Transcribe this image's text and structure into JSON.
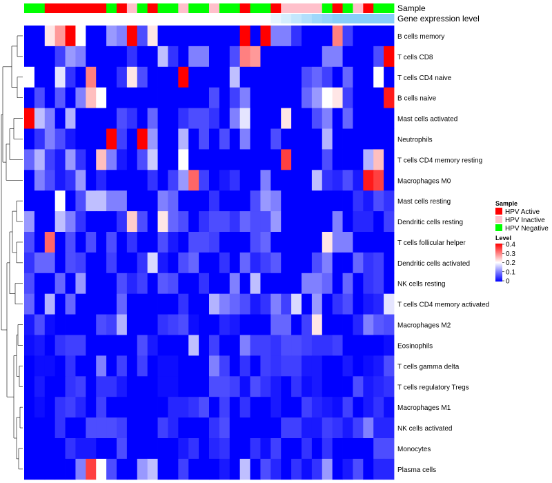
{
  "chart_data": {
    "type": "heatmap",
    "title": "",
    "annotation_labels": [
      "Sample",
      "Gene expression level"
    ],
    "rows": [
      "B cells memory",
      "T cells CD8",
      "T cells CD4 naive",
      "B cells naive",
      "Mast cells activated",
      "Neutrophils",
      "T cells CD4 memory resting",
      "Macrophages M0",
      "Mast cells resting",
      "Dendritic cells resting",
      "T cells follicular helper",
      "Dendritic cells activated",
      "NK cells resting",
      "T cells CD4 memory activated",
      "Macrophages M2",
      "Eosinophils",
      "T cells gamma delta",
      "T cells regulatory  Tregs",
      "Macrophages M1",
      "NK cells activated",
      "Monocytes",
      "Plasma cells"
    ],
    "n_columns": 36,
    "sample_groups": [
      "N",
      "N",
      "A",
      "A",
      "A",
      "A",
      "A",
      "A",
      "N",
      "A",
      "I",
      "N",
      "A",
      "N",
      "N",
      "I",
      "N",
      "N",
      "I",
      "N",
      "N",
      "A",
      "N",
      "N",
      "A",
      "I",
      "I",
      "I",
      "I",
      "N",
      "A",
      "N",
      "I",
      "A",
      "N",
      "N"
    ],
    "gene_expression_fill": [
      0,
      0,
      0,
      0,
      0,
      0,
      0,
      0,
      0,
      0,
      0,
      0,
      0,
      0,
      0,
      0,
      0,
      0,
      0,
      0,
      0,
      0,
      0,
      0,
      0.2,
      0.35,
      0.5,
      0.65,
      0.8,
      0.9,
      1,
      1,
      1,
      1,
      1,
      1
    ],
    "values": [
      [
        0,
        0,
        0.22,
        0.28,
        0.4,
        0.2,
        0,
        0,
        0.12,
        0.1,
        0.4,
        0.06,
        0.22,
        0,
        0,
        0,
        0,
        0,
        0,
        0,
        0,
        0.4,
        0,
        0.4,
        0.1,
        0.1,
        0.04,
        0,
        0,
        0,
        0.3,
        0.05,
        0,
        0,
        0,
        0
      ],
      [
        0,
        0,
        0,
        0.05,
        0.12,
        0.1,
        0,
        0,
        0,
        0,
        0.04,
        0,
        0,
        0.15,
        0.04,
        0,
        0.1,
        0.1,
        0,
        0,
        0.06,
        0.3,
        0.28,
        0,
        0,
        0,
        0,
        0,
        0,
        0.1,
        0.1,
        0,
        0,
        0,
        0.06,
        0.4
      ],
      [
        0.2,
        0,
        0,
        0.18,
        0.04,
        0,
        0.3,
        0,
        0,
        0.04,
        0.22,
        0.06,
        0,
        0,
        0,
        0.4,
        0,
        0,
        0,
        0,
        0.15,
        0,
        0,
        0,
        0,
        0,
        0,
        0.06,
        0.08,
        0.05,
        0,
        0.08,
        0,
        0,
        0.2,
        0
      ],
      [
        0,
        0.06,
        0,
        0.07,
        0,
        0.1,
        0.25,
        0.2,
        0,
        0,
        0,
        0,
        0,
        0,
        0,
        0,
        0,
        0,
        0.06,
        0,
        0.05,
        0.1,
        0,
        0,
        0,
        0,
        0,
        0.08,
        0.12,
        0.2,
        0.22,
        0.05,
        0,
        0,
        0,
        0.38
      ],
      [
        0.4,
        0.15,
        0.1,
        0,
        0.14,
        0,
        0,
        0,
        0,
        0.06,
        0.04,
        0,
        0.08,
        0,
        0,
        0.04,
        0.06,
        0.06,
        0.04,
        0,
        0.1,
        0.18,
        0,
        0,
        0,
        0.22,
        0,
        0,
        0.06,
        0.1,
        0,
        0.08,
        0,
        0,
        0,
        0
      ],
      [
        0,
        0.04,
        0.1,
        0.06,
        0.02,
        0,
        0,
        0,
        0.4,
        0.05,
        0,
        0.4,
        0.12,
        0,
        0,
        0.14,
        0,
        0.06,
        0,
        0.06,
        0,
        0.1,
        0,
        0,
        0.06,
        0,
        0,
        0,
        0,
        0.14,
        0,
        0,
        0,
        0,
        0,
        0
      ],
      [
        0.08,
        0.14,
        0.05,
        0.02,
        0.12,
        0.04,
        0,
        0.25,
        0.1,
        0.02,
        0,
        0.06,
        0.16,
        0,
        0,
        0.2,
        0,
        0,
        0,
        0,
        0,
        0,
        0,
        0,
        0,
        0.35,
        0,
        0,
        0,
        0.06,
        0,
        0,
        0,
        0.14,
        0.25,
        0
      ],
      [
        0,
        0.1,
        0.06,
        0.02,
        0.04,
        0.12,
        0,
        0.03,
        0,
        0,
        0,
        0,
        0.04,
        0,
        0.05,
        0.12,
        0.32,
        0.05,
        0,
        0.02,
        0.04,
        0,
        0,
        0.1,
        0,
        0,
        0,
        0,
        0.15,
        0.04,
        0.03,
        0.06,
        0.02,
        0.38,
        0.35,
        0
      ],
      [
        0,
        0,
        0,
        0.2,
        0,
        0.06,
        0.15,
        0.15,
        0.1,
        0.1,
        0,
        0,
        0,
        0.1,
        0.08,
        0,
        0,
        0,
        0.04,
        0,
        0,
        0,
        0.06,
        0.12,
        0.1,
        0,
        0,
        0,
        0,
        0,
        0,
        0,
        0.04,
        0.02,
        0.06,
        0.04
      ],
      [
        0.12,
        0,
        0,
        0.15,
        0.1,
        0.04,
        0,
        0,
        0,
        0.04,
        0.24,
        0.06,
        0,
        0.22,
        0.08,
        0.06,
        0,
        0.04,
        0.06,
        0.06,
        0.04,
        0.08,
        0.06,
        0.06,
        0.12,
        0,
        0,
        0,
        0,
        0,
        0.1,
        0,
        0.03,
        0.03,
        0,
        0.05
      ],
      [
        0.06,
        0,
        0.32,
        0,
        0.06,
        0,
        0.06,
        0,
        0.06,
        0,
        0.04,
        0,
        0,
        0.06,
        0.02,
        0,
        0.06,
        0.06,
        0.05,
        0,
        0,
        0,
        0.06,
        0.08,
        0,
        0,
        0,
        0,
        0,
        0.22,
        0.1,
        0.1,
        0,
        0,
        0,
        0
      ],
      [
        0.04,
        0.08,
        0.08,
        0,
        0.06,
        0.05,
        0,
        0,
        0.05,
        0,
        0,
        0.04,
        0.17,
        0.02,
        0,
        0.06,
        0.08,
        0,
        0,
        0.04,
        0,
        0.08,
        0.03,
        0.05,
        0.07,
        0,
        0,
        0,
        0.06,
        0.1,
        0,
        0,
        0.08,
        0.04,
        0.05,
        0
      ],
      [
        0.06,
        0,
        0,
        0.08,
        0,
        0.12,
        0,
        0,
        0,
        0.06,
        0.03,
        0.05,
        0,
        0.07,
        0.06,
        0,
        0,
        0.04,
        0,
        0,
        0.1,
        0,
        0.15,
        0,
        0,
        0,
        0,
        0.1,
        0.1,
        0.08,
        0,
        0.08,
        0,
        0.04,
        0.05,
        0
      ],
      [
        0.08,
        0,
        0.14,
        0,
        0.08,
        0,
        0,
        0,
        0,
        0.08,
        0,
        0,
        0,
        0,
        0,
        0.04,
        0,
        0,
        0.14,
        0.1,
        0.08,
        0.06,
        0.02,
        0.04,
        0.1,
        0.05,
        0.17,
        0,
        0.12,
        0,
        0.04,
        0.06,
        0,
        0.02,
        0.03,
        0.18
      ],
      [
        0.02,
        0.06,
        0.01,
        0,
        0,
        0,
        0,
        0.06,
        0.05,
        0.14,
        0,
        0,
        0,
        0.04,
        0.05,
        0.06,
        0.01,
        0,
        0,
        0.03,
        0.02,
        0,
        0,
        0,
        0.08,
        0.08,
        0,
        0.05,
        0.22,
        0,
        0,
        0,
        0.03,
        0.1,
        0.07,
        0.06
      ],
      [
        0.01,
        0.02,
        0,
        0.04,
        0.05,
        0.05,
        0,
        0,
        0,
        0,
        0,
        0.06,
        0.02,
        0,
        0,
        0,
        0.15,
        0,
        0.05,
        0,
        0,
        0.1,
        0.05,
        0.05,
        0.04,
        0.06,
        0.06,
        0.05,
        0.04,
        0.04,
        0.05,
        0,
        0,
        0,
        0,
        0.01
      ],
      [
        0,
        0.01,
        0.01,
        0,
        0.04,
        0,
        0,
        0.1,
        0,
        0.05,
        0,
        0.05,
        0,
        0.01,
        0.01,
        0,
        0,
        0,
        0.1,
        0.05,
        0,
        0.04,
        0,
        0.05,
        0.04,
        0.05,
        0.05,
        0.02,
        0.02,
        0,
        0,
        0.02,
        0,
        0.01,
        0.02,
        0.06
      ],
      [
        0,
        0.02,
        0,
        0,
        0.04,
        0.05,
        0,
        0.04,
        0.04,
        0.02,
        0,
        0,
        0,
        0.01,
        0.01,
        0,
        0,
        0,
        0.06,
        0.06,
        0.05,
        0.01,
        0.06,
        0.04,
        0.02,
        0,
        0.04,
        0.01,
        0.02,
        0,
        0,
        0,
        0.06,
        0.02,
        0.03,
        0.04
      ],
      [
        0,
        0.01,
        0,
        0.04,
        0.05,
        0.03,
        0,
        0.05,
        0,
        0,
        0,
        0,
        0,
        0,
        0.03,
        0.03,
        0.04,
        0.06,
        0,
        0.05,
        0,
        0.04,
        0,
        0,
        0.02,
        0,
        0,
        0.05,
        0.03,
        0.02,
        0.01,
        0.05,
        0,
        0.02,
        0.04,
        0.01
      ],
      [
        0,
        0,
        0,
        0.04,
        0,
        0,
        0.06,
        0.06,
        0.06,
        0.05,
        0,
        0,
        0,
        0.05,
        0.03,
        0,
        0,
        0,
        0.04,
        0.06,
        0,
        0,
        0,
        0,
        0,
        0.05,
        0.05,
        0.02,
        0.02,
        0.05,
        0.04,
        0.02,
        0.05,
        0.1,
        0.03,
        0.03
      ],
      [
        0,
        0,
        0,
        0,
        0.04,
        0.02,
        0.02,
        0,
        0,
        0.06,
        0,
        0,
        0,
        0,
        0,
        0.02,
        0.04,
        0,
        0.03,
        0.04,
        0,
        0,
        0.04,
        0.01,
        0.05,
        0,
        0,
        0.04,
        0,
        0.04,
        0,
        0,
        0,
        0,
        0.06,
        0.06
      ],
      [
        0,
        0,
        0,
        0,
        0,
        0.1,
        0.35,
        0.2,
        0.06,
        0,
        0,
        0.12,
        0.15,
        0,
        0,
        0.05,
        0,
        0,
        0,
        0.02,
        0,
        0.15,
        0,
        0.06,
        0.03,
        0,
        0.04,
        0.01,
        0.04,
        0.12,
        0,
        0.02,
        0.06,
        0,
        0.03,
        0.03
      ]
    ],
    "legend_groups": {
      "title": "Sample",
      "items": [
        {
          "label": "HPV Active",
          "code": "A",
          "color": "#ff0000"
        },
        {
          "label": "HPV Inactive",
          "code": "I",
          "color": "#ffc0cb"
        },
        {
          "label": "HPV Negative",
          "code": "N",
          "color": "#00ff00"
        }
      ]
    },
    "legend_level": {
      "title": "Level",
      "ticks": [
        "0.4",
        "0.3",
        "0.2",
        "0.1",
        "0"
      ],
      "range": [
        0,
        0.4
      ]
    },
    "colors": {
      "low": "#0000ff",
      "mid": "#ffffff",
      "high": "#ff0000",
      "gene_expression": "#87cefa"
    }
  }
}
